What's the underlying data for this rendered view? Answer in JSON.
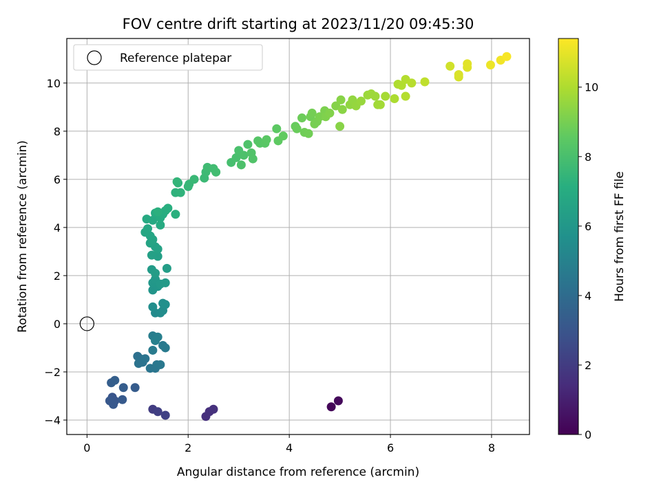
{
  "chart_data": {
    "type": "scatter",
    "title": "FOV centre drift starting at 2023/11/20 09:45:30",
    "xlabel": "Angular distance from reference (arcmin)",
    "ylabel": "Rotation from reference (arcmin)",
    "colorbar_label": "Hours from first FF file",
    "xlim": [
      -0.4,
      8.75
    ],
    "ylim": [
      -4.6,
      11.85
    ],
    "xticks": [
      0,
      2,
      4,
      6,
      8
    ],
    "yticks": [
      -4,
      -2,
      0,
      2,
      4,
      6,
      8,
      10
    ],
    "colorbar_range": [
      0,
      11.4
    ],
    "colorbar_ticks": [
      0,
      2,
      4,
      6,
      8,
      10
    ],
    "colormap": "viridis",
    "grid": true,
    "legend": {
      "position": "top-left",
      "entries": [
        "Reference platepar"
      ]
    },
    "reference_point": {
      "x": 0,
      "y": 0,
      "label": "Reference platepar"
    },
    "points": [
      [
        4.83,
        -3.45,
        0.15
      ],
      [
        4.97,
        -3.2,
        0.25
      ],
      [
        2.35,
        -3.85,
        1.5
      ],
      [
        2.42,
        -3.65,
        1.55
      ],
      [
        2.5,
        -3.55,
        1.6
      ],
      [
        1.3,
        -3.55,
        2.0
      ],
      [
        1.4,
        -3.65,
        2.1
      ],
      [
        1.55,
        -3.8,
        2.2
      ],
      [
        0.5,
        -3.05,
        3.0
      ],
      [
        0.55,
        -3.2,
        3.05
      ],
      [
        0.52,
        -3.35,
        3.1
      ],
      [
        0.45,
        -3.2,
        3.12
      ],
      [
        0.7,
        -3.15,
        3.2
      ],
      [
        0.95,
        -2.65,
        3.3
      ],
      [
        0.72,
        -2.65,
        3.35
      ],
      [
        0.48,
        -2.45,
        3.4
      ],
      [
        0.55,
        -2.35,
        3.45
      ],
      [
        1.0,
        -1.35,
        4.2
      ],
      [
        1.05,
        -1.45,
        4.25
      ],
      [
        1.1,
        -1.6,
        4.3
      ],
      [
        1.02,
        -1.65,
        4.3
      ],
      [
        1.15,
        -1.45,
        4.35
      ],
      [
        1.25,
        -1.85,
        4.4
      ],
      [
        1.35,
        -1.85,
        4.45
      ],
      [
        1.38,
        -1.7,
        4.5
      ],
      [
        1.45,
        -1.7,
        4.55
      ],
      [
        1.5,
        -0.9,
        4.6
      ],
      [
        1.55,
        -1.0,
        4.65
      ],
      [
        1.3,
        -1.1,
        4.7
      ],
      [
        1.3,
        -0.5,
        4.8
      ],
      [
        1.4,
        -0.55,
        4.85
      ],
      [
        1.35,
        -0.7,
        4.9
      ],
      [
        1.35,
        0.45,
        5.4
      ],
      [
        1.45,
        0.45,
        5.45
      ],
      [
        1.5,
        0.55,
        5.5
      ],
      [
        1.3,
        0.7,
        5.55
      ],
      [
        1.5,
        0.85,
        5.6
      ],
      [
        1.55,
        0.8,
        5.65
      ],
      [
        1.3,
        1.4,
        5.9
      ],
      [
        1.4,
        1.55,
        5.95
      ],
      [
        1.3,
        1.7,
        6.0
      ],
      [
        1.35,
        1.85,
        6.05
      ],
      [
        1.45,
        1.65,
        6.1
      ],
      [
        1.55,
        1.7,
        6.15
      ],
      [
        1.28,
        2.25,
        6.2
      ],
      [
        1.35,
        2.1,
        6.25
      ],
      [
        1.58,
        2.3,
        6.3
      ],
      [
        1.4,
        2.8,
        6.4
      ],
      [
        1.28,
        2.85,
        6.45
      ],
      [
        1.35,
        3.2,
        6.5
      ],
      [
        1.4,
        3.1,
        6.55
      ],
      [
        1.25,
        3.35,
        6.6
      ],
      [
        1.3,
        3.5,
        6.65
      ],
      [
        1.25,
        3.65,
        6.7
      ],
      [
        1.15,
        3.8,
        6.75
      ],
      [
        1.2,
        3.95,
        6.8
      ],
      [
        1.3,
        4.3,
        6.85
      ],
      [
        1.18,
        4.35,
        6.9
      ],
      [
        1.45,
        4.1,
        6.95
      ],
      [
        1.35,
        4.6,
        7.0
      ],
      [
        1.45,
        4.4,
        7.0
      ],
      [
        1.5,
        4.55,
        7.05
      ],
      [
        1.55,
        4.7,
        7.1
      ],
      [
        1.6,
        4.8,
        7.15
      ],
      [
        1.75,
        4.55,
        7.2
      ],
      [
        1.4,
        4.65,
        7.2
      ],
      [
        1.75,
        5.45,
        7.3
      ],
      [
        1.85,
        5.45,
        7.35
      ],
      [
        1.8,
        5.85,
        7.4
      ],
      [
        1.78,
        5.9,
        7.45
      ],
      [
        2.0,
        5.7,
        7.5
      ],
      [
        2.02,
        5.8,
        7.55
      ],
      [
        2.12,
        6.0,
        7.6
      ],
      [
        2.32,
        6.05,
        7.65
      ],
      [
        2.35,
        6.3,
        7.7
      ],
      [
        2.38,
        6.5,
        7.75
      ],
      [
        2.5,
        6.45,
        7.8
      ],
      [
        2.55,
        6.3,
        7.85
      ],
      [
        2.85,
        6.7,
        7.95
      ],
      [
        2.95,
        6.9,
        8.0
      ],
      [
        3.0,
        7.2,
        8.05
      ],
      [
        3.05,
        6.6,
        8.1
      ],
      [
        3.1,
        7.0,
        8.1
      ],
      [
        3.18,
        7.45,
        8.15
      ],
      [
        3.25,
        7.1,
        8.2
      ],
      [
        3.28,
        6.85,
        8.2
      ],
      [
        3.38,
        7.6,
        8.3
      ],
      [
        3.42,
        7.5,
        8.35
      ],
      [
        3.52,
        7.5,
        8.4
      ],
      [
        3.55,
        7.65,
        8.45
      ],
      [
        3.75,
        8.1,
        8.5
      ],
      [
        3.78,
        7.6,
        8.55
      ],
      [
        3.88,
        7.8,
        8.6
      ],
      [
        4.12,
        8.2,
        8.7
      ],
      [
        4.15,
        8.1,
        8.75
      ],
      [
        4.25,
        8.55,
        8.8
      ],
      [
        4.3,
        7.95,
        8.85
      ],
      [
        4.38,
        7.9,
        8.9
      ],
      [
        4.42,
        8.6,
        8.9
      ],
      [
        4.45,
        8.75,
        8.95
      ],
      [
        4.5,
        8.3,
        9.0
      ],
      [
        4.55,
        8.4,
        9.0
      ],
      [
        4.6,
        8.6,
        9.05
      ],
      [
        4.7,
        8.85,
        9.1
      ],
      [
        4.72,
        8.6,
        9.15
      ],
      [
        4.8,
        8.75,
        9.2
      ],
      [
        4.92,
        9.05,
        9.25
      ],
      [
        5.0,
        8.2,
        9.3
      ],
      [
        5.02,
        9.3,
        9.3
      ],
      [
        5.05,
        8.9,
        9.35
      ],
      [
        5.2,
        9.1,
        9.45
      ],
      [
        5.25,
        9.3,
        9.5
      ],
      [
        5.32,
        9.05,
        9.55
      ],
      [
        5.42,
        9.25,
        9.6
      ],
      [
        5.55,
        9.5,
        9.65
      ],
      [
        5.62,
        9.55,
        9.7
      ],
      [
        5.7,
        9.45,
        9.7
      ],
      [
        5.75,
        9.1,
        9.75
      ],
      [
        5.8,
        9.1,
        9.8
      ],
      [
        5.9,
        9.45,
        9.85
      ],
      [
        6.08,
        9.35,
        9.95
      ],
      [
        6.15,
        9.95,
        10.0
      ],
      [
        6.22,
        9.9,
        10.05
      ],
      [
        6.3,
        10.15,
        10.1
      ],
      [
        6.3,
        9.45,
        10.1
      ],
      [
        6.42,
        10.0,
        10.15
      ],
      [
        6.68,
        10.05,
        10.3
      ],
      [
        7.18,
        10.7,
        10.6
      ],
      [
        7.35,
        10.25,
        10.7
      ],
      [
        7.35,
        10.35,
        10.75
      ],
      [
        7.52,
        10.65,
        10.85
      ],
      [
        7.52,
        10.8,
        10.9
      ],
      [
        7.98,
        10.75,
        11.1
      ],
      [
        8.18,
        10.95,
        11.2
      ],
      [
        8.3,
        11.1,
        11.3
      ]
    ]
  }
}
